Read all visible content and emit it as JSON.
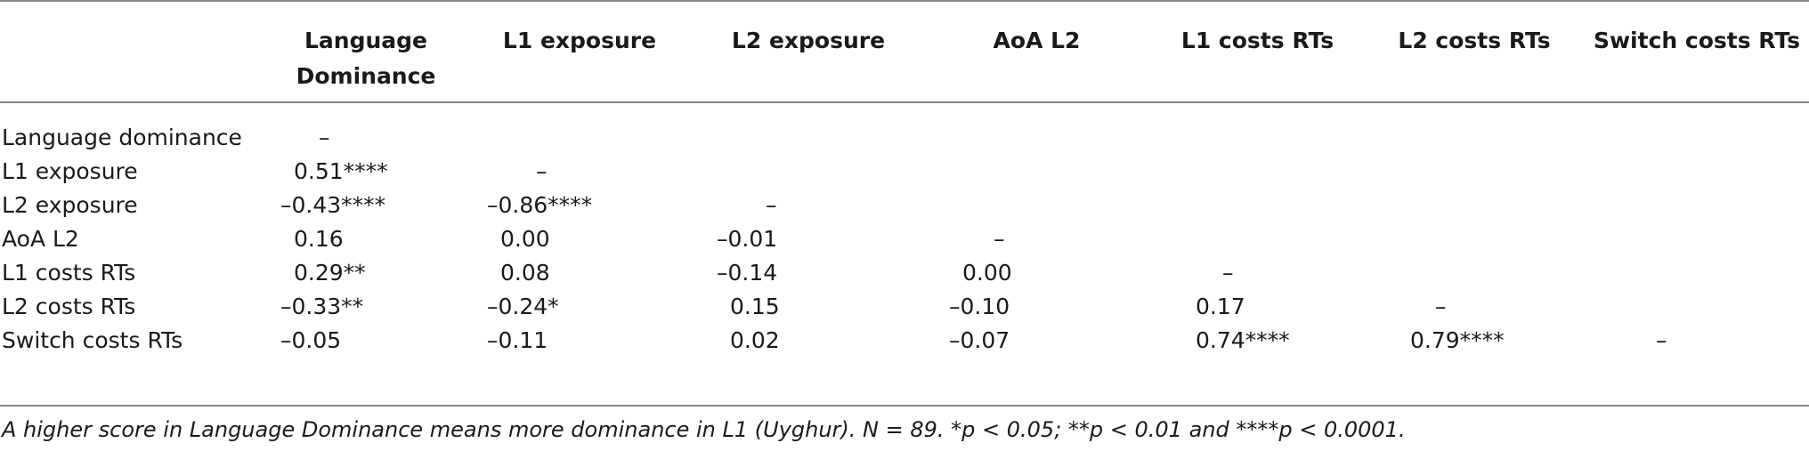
{
  "table": {
    "headers": [
      "",
      "Language Dominance",
      "L1 exposure",
      "L2 exposure",
      "AoA L2",
      "L1 costs RTs",
      "L2 costs RTs",
      "Switch costs RTs"
    ],
    "rows": [
      {
        "label": "Language dominance",
        "cells": [
          "–",
          "",
          "",
          "",
          "",
          "",
          ""
        ]
      },
      {
        "label": "L1 exposure",
        "cells": [
          "0.51****",
          "–",
          "",
          "",
          "",
          "",
          ""
        ]
      },
      {
        "label": "L2 exposure",
        "cells": [
          "–0.43****",
          "–0.86****",
          "–",
          "",
          "",
          "",
          ""
        ]
      },
      {
        "label": "AoA L2",
        "cells": [
          "0.16",
          "0.00",
          "–0.01",
          "–",
          "",
          "",
          ""
        ]
      },
      {
        "label": "L1 costs RTs",
        "cells": [
          "0.29**",
          "0.08",
          "–0.14",
          "0.00",
          "–",
          "",
          ""
        ]
      },
      {
        "label": "L2 costs RTs",
        "cells": [
          "–0.33**",
          "–0.24*",
          "0.15",
          "–0.10",
          "0.17",
          "–",
          ""
        ]
      },
      {
        "label": "Switch costs RTs",
        "cells": [
          "–0.05",
          "–0.11",
          "0.02",
          "–0.07",
          "0.74****",
          "0.79****",
          "–"
        ]
      }
    ]
  },
  "footnote": "A higher score in Language Dominance means more dominance in L1 (Uyghur). N = 89. *p < 0.05; **p < 0.01 and ****p < 0.0001."
}
